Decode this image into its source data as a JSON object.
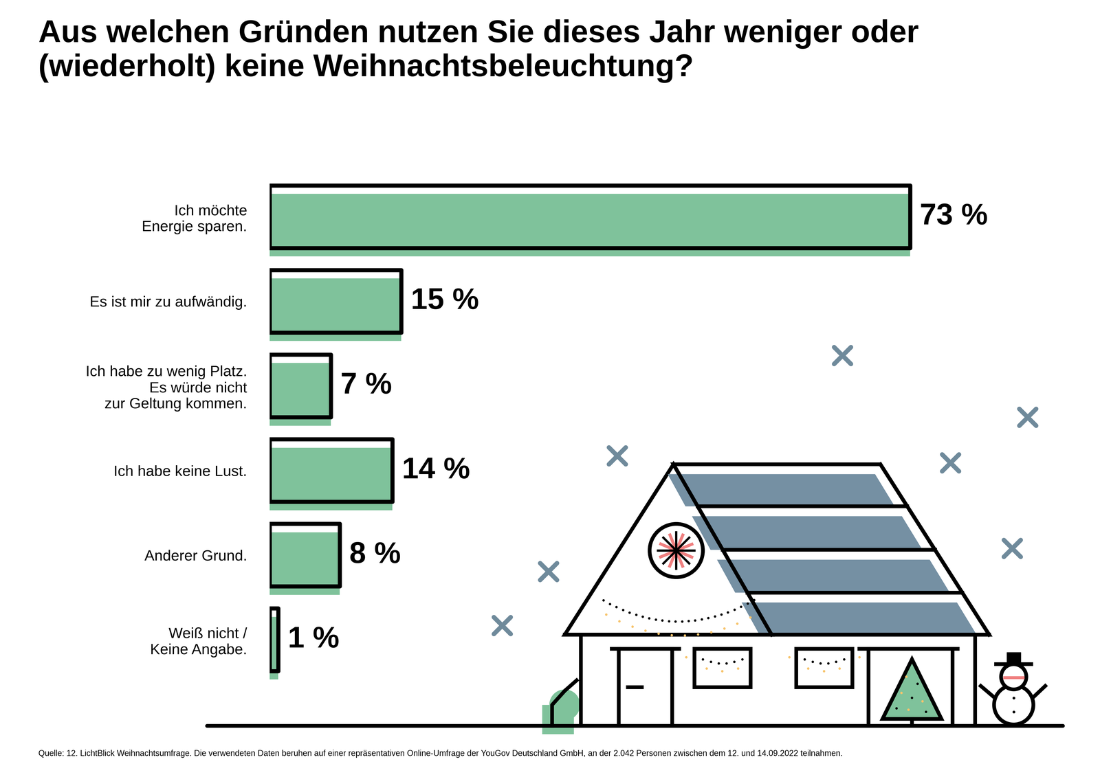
{
  "chart_data": {
    "type": "bar",
    "orientation": "horizontal",
    "title": "Aus welchen Gründen nutzen Sie dieses Jahr weniger oder (wiederholt) keine Weihnachtsbeleuchtung?",
    "categories": [
      "Ich möchte\nEnergie sparen.",
      "Es ist mir zu aufwändig.",
      "Ich habe zu wenig Platz.\nEs würde nicht\nzur Geltung kommen.",
      "Ich habe keine Lust.",
      "Anderer Grund.",
      "Weiß nicht /\nKeine Angabe."
    ],
    "values": [
      73,
      15,
      7,
      14,
      8,
      1
    ],
    "value_labels": [
      "73 %",
      "15 %",
      "7 %",
      "14 %",
      "8 %",
      "1 %"
    ],
    "color": "#7fc29b",
    "xlim": [
      0,
      90
    ],
    "data_labels": true,
    "tick_labels": "y",
    "grid": false,
    "annotations": [
      "Quelle: 12. LichtBlick Weihnachtsumfrage. Die verwendeten Daten beruhen auf einer repräsentativen Online-Umfrage der YouGov Deutschland GmbH, an der 2.042 Personen zwischen dem 12. und 14.09.2022 teilnahmen."
    ]
  }
}
